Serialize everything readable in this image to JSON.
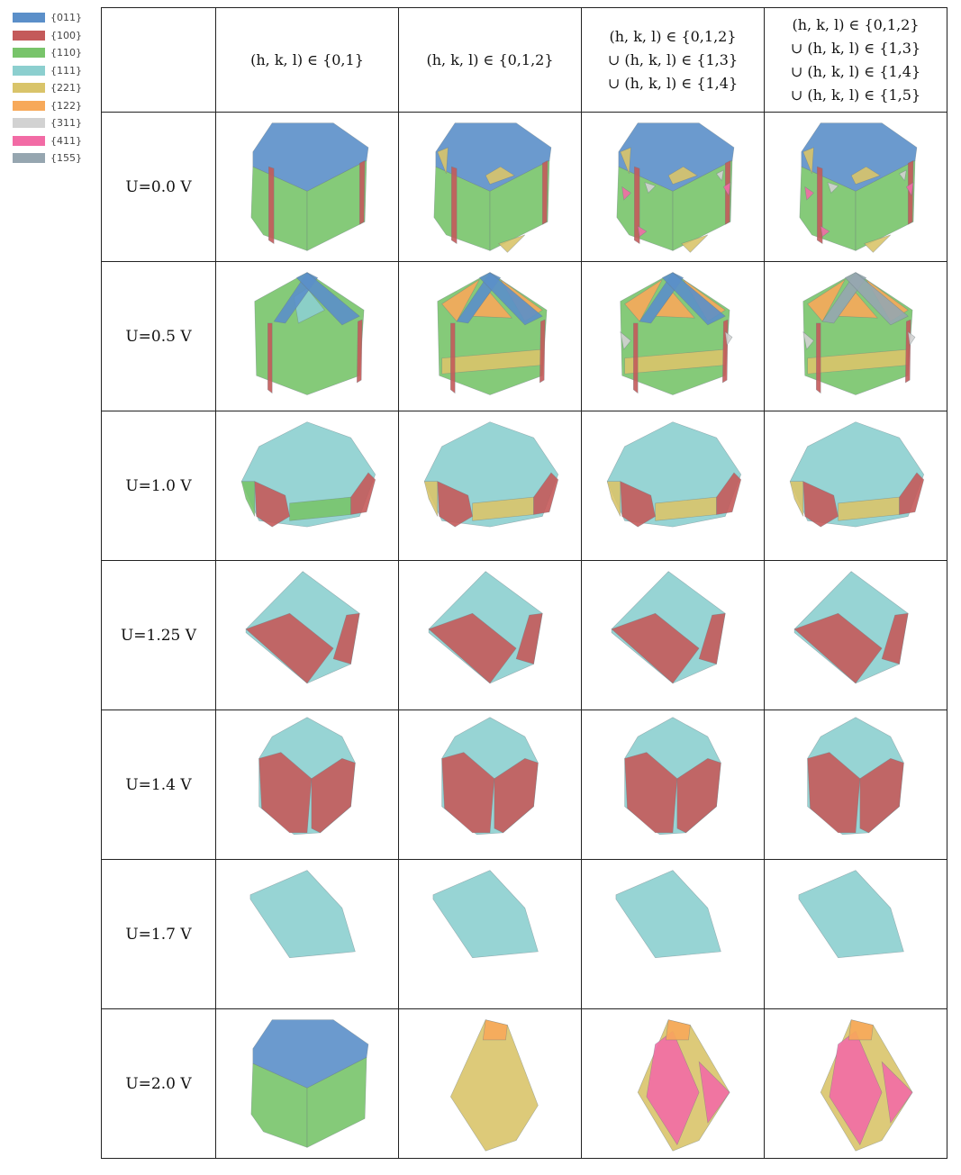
{
  "legend": [
    {
      "label": "{011}",
      "color": "#5b8fc9"
    },
    {
      "label": "{100}",
      "color": "#c45a5a"
    },
    {
      "label": "{110}",
      "color": "#78c46a"
    },
    {
      "label": "{111}",
      "color": "#8ccfcf"
    },
    {
      "label": "{221}",
      "color": "#d9c46a"
    },
    {
      "label": "{122}",
      "color": "#f7a95a"
    },
    {
      "label": "{311}",
      "color": "#d2d2d2"
    },
    {
      "label": "{411}",
      "color": "#f26ba5"
    },
    {
      "label": "{155}",
      "color": "#96a6b0"
    }
  ],
  "headers": [
    [
      "(h, k, l) ∈ {0,1}"
    ],
    [
      "(h, k, l) ∈ {0,1,2}"
    ],
    [
      "(h, k, l) ∈ {0,1,2}",
      "∪ (h, k, l) ∈ {1,3}",
      "∪ (h, k, l) ∈ {1,4}"
    ],
    [
      "(h, k, l) ∈ {0,1,2}",
      "∪ (h, k, l) ∈ {1,3}",
      "∪ (h, k, l) ∈ {1,4}",
      "∪ (h, k, l) ∈ {1,5}"
    ]
  ],
  "rows": [
    {
      "label": "U=0.0 V",
      "shape": "cube",
      "cells": [
        [
          "011",
          "100",
          "110"
        ],
        [
          "011",
          "100",
          "110",
          "221"
        ],
        [
          "011",
          "100",
          "110",
          "221",
          "311",
          "411"
        ],
        [
          "011",
          "100",
          "110",
          "221",
          "311",
          "411"
        ]
      ]
    },
    {
      "label": "U=0.5 V",
      "shape": "roof",
      "cells": [
        [
          "011",
          "100",
          "110",
          "111"
        ],
        [
          "011",
          "100",
          "110",
          "122",
          "221"
        ],
        [
          "011",
          "100",
          "110",
          "122",
          "221",
          "311"
        ],
        [
          "155",
          "100",
          "110",
          "122",
          "221",
          "311"
        ]
      ]
    },
    {
      "label": "U=1.0 V",
      "shape": "round",
      "cells": [
        [
          "111",
          "100",
          "110"
        ],
        [
          "111",
          "100",
          "221"
        ],
        [
          "111",
          "100",
          "221"
        ],
        [
          "111",
          "100",
          "221"
        ]
      ]
    },
    {
      "label": "U=1.25 V",
      "shape": "dodeca",
      "cells": [
        [
          "111",
          "100"
        ],
        [
          "111",
          "100"
        ],
        [
          "111",
          "100"
        ],
        [
          "111",
          "100"
        ]
      ]
    },
    {
      "label": "U=1.4 V",
      "shape": "trunc",
      "cells": [
        [
          "111",
          "100"
        ],
        [
          "111",
          "100"
        ],
        [
          "111",
          "100"
        ],
        [
          "111",
          "100"
        ]
      ]
    },
    {
      "label": "U=1.7 V",
      "shape": "octa",
      "cells": [
        [
          "111"
        ],
        [
          "111"
        ],
        [
          "111"
        ],
        [
          "111"
        ]
      ]
    },
    {
      "label": "U=2.0 V",
      "shape": "mixed",
      "cells": [
        [
          "011",
          "110"
        ],
        [
          "221",
          "122"
        ],
        [
          "411",
          "221",
          "122"
        ],
        [
          "411",
          "221",
          "122"
        ]
      ]
    }
  ]
}
